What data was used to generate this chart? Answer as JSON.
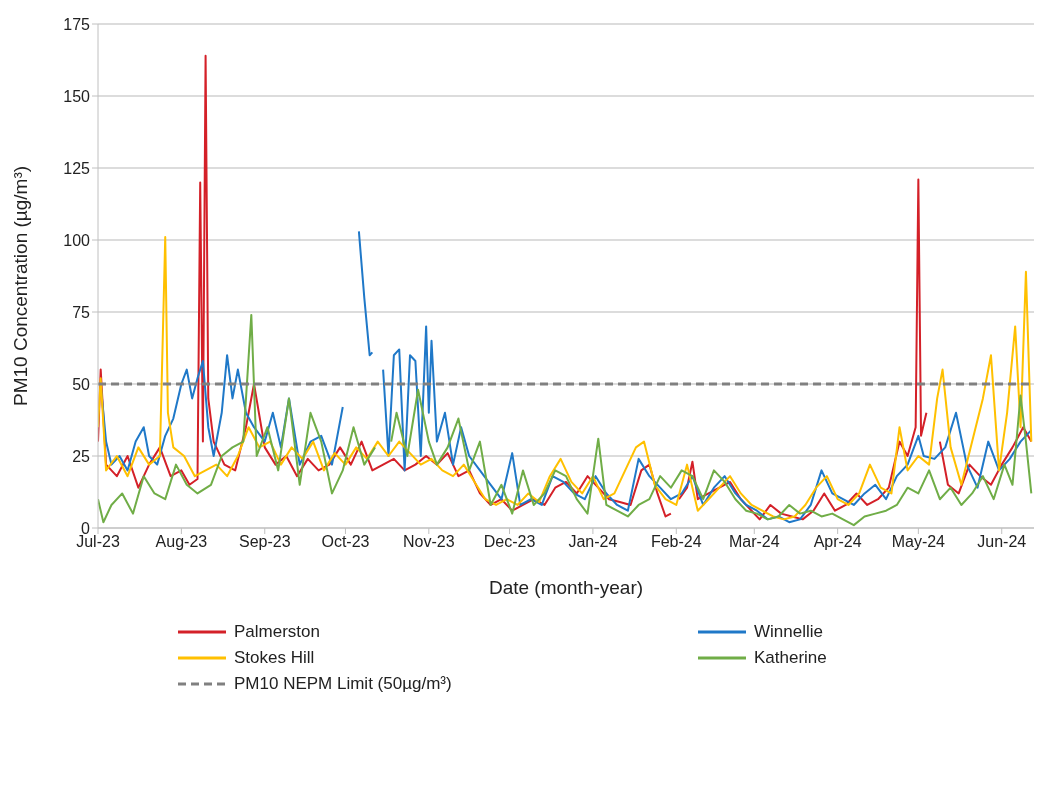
{
  "chart_data": {
    "type": "line",
    "xlabel": "Date (month-year)",
    "ylabel": "PM10 Concentration (µg/m³)",
    "xlim": [
      "2023-07-01",
      "2024-06-13"
    ],
    "xticks": [
      {
        "value": "2023-07-01",
        "label": "Jul-23"
      },
      {
        "value": "2023-08-01",
        "label": "Aug-23"
      },
      {
        "value": "2023-09-01",
        "label": "Sep-23"
      },
      {
        "value": "2023-10-01",
        "label": "Oct-23"
      },
      {
        "value": "2023-11-01",
        "label": "Nov-23"
      },
      {
        "value": "2023-12-01",
        "label": "Dec-23"
      },
      {
        "value": "2024-01-01",
        "label": "Jan-24"
      },
      {
        "value": "2024-02-01",
        "label": "Feb-24"
      },
      {
        "value": "2024-03-01",
        "label": "Mar-24"
      },
      {
        "value": "2024-04-01",
        "label": "Apr-24"
      },
      {
        "value": "2024-05-01",
        "label": "May-24"
      },
      {
        "value": "2024-06-01",
        "label": "Jun-24"
      }
    ],
    "ylim": [
      0,
      175
    ],
    "yticks": [
      0,
      25,
      50,
      75,
      100,
      125,
      150,
      175
    ],
    "grid": "y",
    "legend": "bottom",
    "marker": "none",
    "line_style": "solid",
    "ref_lines": [
      {
        "axis": "y",
        "value": 50,
        "label": "PM10 NEPM Limit (50µg/m³)",
        "color": "#808080",
        "line_style": "dashed"
      }
    ],
    "series": [
      {
        "name": "Palmerston",
        "color": "#d42028",
        "x": [
          "2023-07-01",
          "2023-07-02",
          "2023-07-04",
          "2023-07-08",
          "2023-07-12",
          "2023-07-16",
          "2023-07-20",
          "2023-07-24",
          "2023-07-28",
          "2023-08-01",
          "2023-08-04",
          "2023-08-07",
          "2023-08-08",
          "2023-08-09",
          "2023-08-10",
          "2023-08-11",
          "2023-08-13",
          "2023-08-17",
          "2023-08-21",
          "2023-08-25",
          "2023-08-28",
          "2023-09-01",
          "2023-09-05",
          "2023-09-09",
          "2023-09-13",
          "2023-09-17",
          "2023-09-21",
          "2023-09-25",
          "2023-09-29",
          "2023-10-03",
          "2023-10-07",
          "2023-10-11",
          "2023-10-15",
          "2023-10-19",
          "2023-10-23",
          "2023-10-27",
          "2023-10-31",
          "2023-11-04",
          "2023-11-08",
          "2023-11-12",
          "2023-11-16",
          "2023-11-20",
          "2023-11-24",
          "2023-11-28",
          "2023-12-02",
          "2023-12-06",
          "2023-12-10",
          "2023-12-14",
          "2023-12-18",
          "2023-12-22",
          "2023-12-26",
          "2023-12-30",
          "2024-01-03",
          "2024-01-07",
          "2024-01-11",
          "2024-01-15",
          "2024-01-19",
          "2024-01-22",
          "2024-01-25",
          "2024-01-28",
          "2024-01-30",
          "2024-02-01",
          "2024-02-02",
          "2024-02-05",
          "2024-02-07",
          "2024-02-09",
          "2024-02-13",
          "2024-02-17",
          "2024-02-21",
          "2024-02-25",
          "2024-02-29",
          "2024-03-03",
          "2024-03-07",
          "2024-03-11",
          "2024-03-15",
          "2024-03-19",
          "2024-03-23",
          "2024-03-27",
          "2024-03-31",
          "2024-04-04",
          "2024-04-08",
          "2024-04-12",
          "2024-04-16",
          "2024-04-20",
          "2024-04-24",
          "2024-04-27",
          "2024-04-30",
          "2024-05-01",
          "2024-05-02",
          "2024-05-04",
          "2024-05-06",
          "2024-05-09",
          "2024-05-12",
          "2024-05-16",
          "2024-05-20",
          "2024-05-24",
          "2024-05-28",
          "2024-06-01",
          "2024-06-05",
          "2024-06-09",
          "2024-06-12"
        ],
        "values": [
          30,
          55,
          22,
          18,
          25,
          14,
          22,
          28,
          18,
          20,
          15,
          17,
          120,
          30,
          164,
          45,
          30,
          22,
          20,
          35,
          50,
          28,
          22,
          25,
          18,
          24,
          20,
          22,
          28,
          22,
          30,
          20,
          22,
          24,
          20,
          22,
          25,
          22,
          26,
          18,
          20,
          12,
          8,
          10,
          6,
          8,
          10,
          8,
          14,
          16,
          12,
          18,
          14,
          10,
          9,
          8,
          20,
          22,
          12,
          4,
          5,
          null,
          10,
          14,
          23,
          10,
          12,
          14,
          16,
          10,
          6,
          3,
          8,
          5,
          4,
          3,
          6,
          12,
          6,
          8,
          12,
          8,
          10,
          14,
          30,
          25,
          35,
          121,
          32,
          40,
          null,
          30,
          15,
          12,
          22,
          18,
          15,
          22,
          28,
          35,
          30
        ]
      },
      {
        "name": "Winnellie",
        "color": "#1f78c8",
        "x": [
          "2023-07-02",
          "2023-07-04",
          "2023-07-06",
          "2023-07-09",
          "2023-07-12",
          "2023-07-15",
          "2023-07-18",
          "2023-07-20",
          "2023-07-23",
          "2023-07-26",
          "2023-07-29",
          "2023-08-01",
          "2023-08-03",
          "2023-08-05",
          "2023-08-07",
          "2023-08-09",
          "2023-08-11",
          "2023-08-13",
          "2023-08-16",
          "2023-08-18",
          "2023-08-20",
          "2023-08-22",
          "2023-08-25",
          "2023-08-28",
          "2023-09-01",
          "2023-09-04",
          "2023-09-07",
          "2023-09-10",
          "2023-09-14",
          "2023-09-18",
          "2023-09-22",
          "2023-09-26",
          "2023-09-30",
          "2023-10-03",
          "2023-10-06",
          "2023-10-08",
          "2023-10-10",
          "2023-10-11",
          "2023-10-12",
          "2023-10-15",
          "2023-10-17",
          "2023-10-19",
          "2023-10-21",
          "2023-10-23",
          "2023-10-25",
          "2023-10-27",
          "2023-10-29",
          "2023-10-31",
          "2023-11-01",
          "2023-11-02",
          "2023-11-04",
          "2023-11-07",
          "2023-11-10",
          "2023-11-13",
          "2023-11-16",
          "2023-11-20",
          "2023-11-24",
          "2023-11-28",
          "2023-12-02",
          "2023-12-05",
          "2023-12-09",
          "2023-12-13",
          "2023-12-17",
          "2023-12-21",
          "2023-12-25",
          "2023-12-29",
          "2024-01-02",
          "2024-01-06",
          "2024-01-10",
          "2024-01-14",
          "2024-01-18",
          "2024-01-22",
          "2024-01-26",
          "2024-01-30",
          "2024-02-03",
          "2024-02-07",
          "2024-02-11",
          "2024-02-15",
          "2024-02-19",
          "2024-02-23",
          "2024-02-27",
          "2024-03-02",
          "2024-03-06",
          "2024-03-10",
          "2024-03-14",
          "2024-03-18",
          "2024-03-22",
          "2024-03-26",
          "2024-03-30",
          "2024-04-03",
          "2024-04-07",
          "2024-04-11",
          "2024-04-15",
          "2024-04-19",
          "2024-04-23",
          "2024-04-27",
          "2024-05-01",
          "2024-05-03",
          "2024-05-07",
          "2024-05-11",
          "2024-05-15",
          "2024-05-19",
          "2024-05-23",
          "2024-05-27",
          "2024-05-31",
          "2024-06-04",
          "2024-06-08",
          "2024-06-12"
        ],
        "values": [
          50,
          30,
          22,
          25,
          20,
          30,
          35,
          25,
          22,
          32,
          38,
          50,
          55,
          45,
          52,
          58,
          35,
          25,
          40,
          60,
          45,
          55,
          40,
          35,
          30,
          40,
          28,
          45,
          22,
          30,
          32,
          22,
          42,
          null,
          103,
          80,
          60,
          61,
          null,
          55,
          25,
          60,
          62,
          20,
          60,
          58,
          25,
          70,
          40,
          65,
          30,
          40,
          22,
          35,
          25,
          20,
          15,
          10,
          26,
          8,
          10,
          8,
          18,
          16,
          12,
          10,
          18,
          12,
          8,
          6,
          24,
          18,
          14,
          10,
          12,
          18,
          8,
          14,
          18,
          12,
          8,
          6,
          3,
          4,
          2,
          3,
          8,
          20,
          12,
          10,
          8,
          12,
          15,
          10,
          18,
          22,
          32,
          25,
          24,
          28,
          40,
          22,
          14,
          30,
          20,
          24,
          30,
          34
        ]
      },
      {
        "name": "Stokes Hill",
        "color": "#ffc000",
        "x": [
          "2023-07-01",
          "2023-07-02",
          "2023-07-04",
          "2023-07-08",
          "2023-07-12",
          "2023-07-16",
          "2023-07-20",
          "2023-07-24",
          "2023-07-26",
          "2023-07-27",
          "2023-07-29",
          "2023-08-02",
          "2023-08-06",
          "2023-08-10",
          "2023-08-14",
          "2023-08-18",
          "2023-08-22",
          "2023-08-26",
          "2023-08-30",
          "2023-09-03",
          "2023-09-07",
          "2023-09-11",
          "2023-09-15",
          "2023-09-19",
          "2023-09-23",
          "2023-09-27",
          "2023-10-01",
          "2023-10-05",
          "2023-10-09",
          "2023-10-13",
          "2023-10-17",
          "2023-10-21",
          "2023-10-25",
          "2023-10-29",
          "2023-11-02",
          "2023-11-06",
          "2023-11-10",
          "2023-11-14",
          "2023-11-18",
          "2023-11-22",
          "2023-11-26",
          "2023-11-30",
          "2023-12-04",
          "2023-12-08",
          "2023-12-12",
          "2023-12-16",
          "2023-12-20",
          "2023-12-24",
          "2023-12-28",
          "2024-01-01",
          "2024-01-05",
          "2024-01-09",
          "2024-01-13",
          "2024-01-17",
          "2024-01-20",
          "2024-01-24",
          "2024-01-28",
          "2024-02-01",
          "2024-02-05",
          "2024-02-09",
          "2024-02-13",
          "2024-02-17",
          "2024-02-21",
          "2024-02-25",
          "2024-02-29",
          "2024-03-04",
          "2024-03-08",
          "2024-03-12",
          "2024-03-16",
          "2024-03-20",
          "2024-03-24",
          "2024-03-28",
          "2024-04-01",
          "2024-04-05",
          "2024-04-09",
          "2024-04-13",
          "2024-04-17",
          "2024-04-21",
          "2024-04-24",
          "2024-04-27",
          "2024-05-01",
          "2024-05-05",
          "2024-05-08",
          "2024-05-10",
          "2024-05-13",
          "2024-05-17",
          "2024-05-21",
          "2024-05-25",
          "2024-05-28",
          "2024-05-31",
          "2024-06-03",
          "2024-06-06",
          "2024-06-08",
          "2024-06-10",
          "2024-06-12"
        ],
        "values": [
          35,
          52,
          20,
          25,
          18,
          28,
          22,
          25,
          101,
          40,
          28,
          25,
          18,
          20,
          22,
          18,
          25,
          35,
          28,
          30,
          22,
          28,
          24,
          30,
          20,
          26,
          22,
          28,
          24,
          30,
          25,
          30,
          26,
          22,
          24,
          20,
          18,
          22,
          16,
          10,
          8,
          10,
          8,
          12,
          9,
          18,
          24,
          16,
          12,
          18,
          10,
          12,
          20,
          28,
          30,
          15,
          10,
          8,
          22,
          6,
          10,
          14,
          18,
          12,
          8,
          6,
          4,
          3,
          4,
          8,
          14,
          18,
          10,
          8,
          12,
          22,
          14,
          12,
          35,
          20,
          25,
          22,
          45,
          55,
          28,
          15,
          30,
          45,
          60,
          20,
          40,
          70,
          35,
          89,
          30
        ]
      },
      {
        "name": "Katherine",
        "color": "#70ad47",
        "x": [
          "2023-07-01",
          "2023-07-03",
          "2023-07-06",
          "2023-07-10",
          "2023-07-14",
          "2023-07-18",
          "2023-07-22",
          "2023-07-26",
          "2023-07-30",
          "2023-08-03",
          "2023-08-07",
          "2023-08-12",
          "2023-08-16",
          "2023-08-20",
          "2023-08-24",
          "2023-08-27",
          "2023-08-29",
          "2023-09-02",
          "2023-09-06",
          "2023-09-10",
          "2023-09-14",
          "2023-09-18",
          "2023-09-22",
          "2023-09-26",
          "2023-09-30",
          "2023-10-04",
          "2023-10-08",
          "2023-10-12",
          "2023-10-16",
          "2023-10-18",
          "2023-10-20",
          "2023-10-24",
          "2023-10-28",
          "2023-11-01",
          "2023-11-04",
          "2023-11-08",
          "2023-11-12",
          "2023-11-16",
          "2023-11-20",
          "2023-11-24",
          "2023-11-28",
          "2023-12-02",
          "2023-12-06",
          "2023-12-10",
          "2023-12-14",
          "2023-12-18",
          "2023-12-22",
          "2023-12-26",
          "2023-12-30",
          "2024-01-03",
          "2024-01-06",
          "2024-01-10",
          "2024-01-14",
          "2024-01-18",
          "2024-01-22",
          "2024-01-26",
          "2024-01-30",
          "2024-02-03",
          "2024-02-07",
          "2024-02-11",
          "2024-02-15",
          "2024-02-19",
          "2024-02-23",
          "2024-02-27",
          "2024-03-02",
          "2024-03-06",
          "2024-03-10",
          "2024-03-14",
          "2024-03-18",
          "2024-03-22",
          "2024-03-26",
          "2024-03-30",
          "2024-04-03",
          "2024-04-07",
          "2024-04-11",
          "2024-04-15",
          "2024-04-19",
          "2024-04-23",
          "2024-04-27",
          "2024-05-01",
          "2024-05-05",
          "2024-05-09",
          "2024-05-13",
          "2024-05-17",
          "2024-05-21",
          "2024-05-25",
          "2024-05-29",
          "2024-06-02",
          "2024-06-05",
          "2024-06-08",
          "2024-06-10",
          "2024-06-12"
        ],
        "values": [
          10,
          2,
          8,
          12,
          5,
          18,
          12,
          10,
          22,
          15,
          12,
          15,
          25,
          28,
          30,
          74,
          25,
          35,
          20,
          45,
          15,
          40,
          30,
          12,
          20,
          35,
          22,
          28,
          null,
          30,
          40,
          25,
          48,
          30,
          22,
          28,
          38,
          20,
          30,
          8,
          15,
          5,
          20,
          8,
          12,
          20,
          18,
          10,
          5,
          31,
          8,
          6,
          4,
          8,
          10,
          18,
          14,
          20,
          18,
          10,
          20,
          16,
          10,
          6,
          5,
          3,
          4,
          8,
          5,
          6,
          4,
          5,
          3,
          1,
          4,
          5,
          6,
          8,
          14,
          12,
          20,
          10,
          14,
          8,
          12,
          18,
          10,
          22,
          15,
          46,
          30,
          12
        ]
      }
    ]
  }
}
